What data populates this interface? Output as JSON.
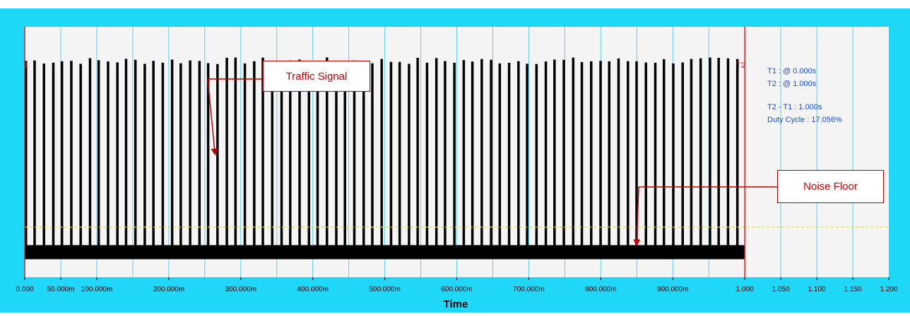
{
  "chart_data": {
    "type": "line",
    "title": "",
    "xlabel": "Time",
    "ylabel": "",
    "xlim": [
      0,
      1.2
    ],
    "x_tick_labels": [
      "0.000",
      "50.000m",
      "100.000m",
      "200.000m",
      "300.000m",
      "400.000m",
      "500.000m",
      "600.000m",
      "700.000m",
      "800.000m",
      "900.000m",
      "1.000",
      "1.050",
      "1.100",
      "1.150",
      "1.200"
    ],
    "x_tick_values": [
      0,
      0.05,
      0.1,
      0.2,
      0.3,
      0.4,
      0.5,
      0.6,
      0.7,
      0.8,
      0.9,
      1.0,
      1.05,
      1.1,
      1.15,
      1.2
    ],
    "vertical_gridlines_every": 0.05,
    "grid": true,
    "series": [
      {
        "signal": "traffic bursts over noise floor",
        "burst_count": 79,
        "burst_start_times": [
          0.0,
          0.012,
          0.025,
          0.038,
          0.05,
          0.063,
          0.076,
          0.089,
          0.101,
          0.114,
          0.127,
          0.139,
          0.152,
          0.165,
          0.177,
          0.19,
          0.203,
          0.215,
          0.228,
          0.241,
          0.253,
          0.266,
          0.279,
          0.291,
          0.304,
          0.317,
          0.329,
          0.342,
          0.355,
          0.367,
          0.38,
          0.393,
          0.405,
          0.418,
          0.431,
          0.443,
          0.456,
          0.469,
          0.481,
          0.494,
          0.507,
          0.519,
          0.532,
          0.544,
          0.557,
          0.57,
          0.582,
          0.595,
          0.608,
          0.62,
          0.633,
          0.646,
          0.658,
          0.671,
          0.684,
          0.696,
          0.709,
          0.722,
          0.734,
          0.747,
          0.76,
          0.772,
          0.785,
          0.798,
          0.81,
          0.823,
          0.836,
          0.848,
          0.861,
          0.874,
          0.886,
          0.899,
          0.912,
          0.924,
          0.937,
          0.95,
          0.962,
          0.975,
          0.988
        ],
        "burst_width_s": 0.00216,
        "burst_level": 0.85,
        "noise_floor_level": 0.1
      }
    ],
    "threshold_level": 0.2,
    "cursors": [
      {
        "label": "T1",
        "time": 0.0,
        "display": "1"
      },
      {
        "label": "T2",
        "time": 1.0,
        "display": "T2"
      }
    ],
    "readout": {
      "t1": "T1 : @ 0.000s",
      "t2": "T2 : @ 1.000s",
      "delta": "T2 - T1 : 1.000s",
      "duty": "Duty Cycle : 17.056%"
    },
    "annotations": [
      {
        "text": "Traffic Signal",
        "points_to_time": 0.225,
        "points_to_level": 0.9
      },
      {
        "text": "Noise Floor",
        "points_to_time": 0.835,
        "points_to_level": 0.12
      }
    ],
    "colors": {
      "frame": "#1fd8f8",
      "plot_bg": "#f4f4f4",
      "grid": "#5ad2ec",
      "signal": "#000000",
      "cursor": "#e02020",
      "threshold": "#f2e200",
      "readout_text": "#1a4fd0",
      "callout_border": "#c00000"
    }
  }
}
